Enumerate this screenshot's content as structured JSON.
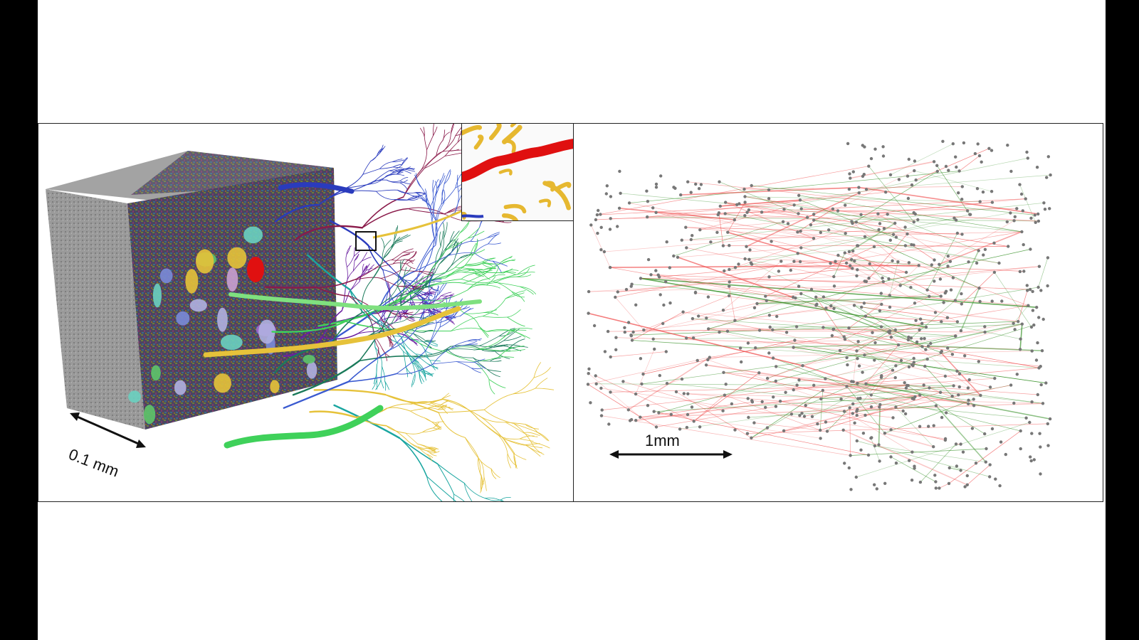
{
  "figure": {
    "left_panel": {
      "scale_bar_label": "0.1 mm",
      "colors": {
        "block_gray": "#8f8f8f",
        "segmented_face": "#5a4a6a",
        "yellow": "#e6c23a",
        "blue": "#2a3bbd",
        "green": "#3fd15a",
        "purple": "#6a1fa0",
        "teal": "#1aa6a0",
        "red": "#e01010"
      },
      "inset_icon": "dendrite-zoom-image"
    },
    "right_panel": {
      "scale_bar_label": "1mm",
      "colors": {
        "node": "#777777",
        "edge_red": "#f04a4a",
        "edge_green": "#2a8a1a"
      }
    }
  }
}
